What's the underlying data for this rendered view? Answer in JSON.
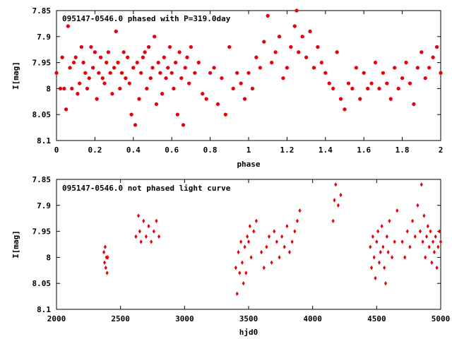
{
  "chart_data": [
    {
      "type": "scatter",
      "title": "095147-0546.0 phased with P=319.0day",
      "xlabel": "phase",
      "ylabel": "I[mag]",
      "xlim": [
        0,
        2
      ],
      "ylim": [
        8.1,
        7.85
      ],
      "xticks": [
        "0",
        "0.2",
        "0.4",
        "0.6",
        "0.8",
        "1",
        "1.2",
        "1.4",
        "1.6",
        "1.8",
        "2"
      ],
      "yticks": [
        "7.85",
        "7.9",
        "7.95",
        "8",
        "8.05",
        "8.1"
      ],
      "marker": "cross",
      "color": "#e8000a",
      "points": [
        [
          0.0,
          7.97
        ],
        [
          0.02,
          8.0
        ],
        [
          0.03,
          7.94
        ],
        [
          0.04,
          8.0
        ],
        [
          0.05,
          8.04
        ],
        [
          0.06,
          7.88
        ],
        [
          0.07,
          7.96
        ],
        [
          0.08,
          8.0
        ],
        [
          0.09,
          7.95
        ],
        [
          0.1,
          7.94
        ],
        [
          0.11,
          8.01
        ],
        [
          0.12,
          7.99
        ],
        [
          0.13,
          7.92
        ],
        [
          0.14,
          7.95
        ],
        [
          0.15,
          7.97
        ],
        [
          0.16,
          8.0
        ],
        [
          0.17,
          7.98
        ],
        [
          0.18,
          7.92
        ],
        [
          0.19,
          7.96
        ],
        [
          0.2,
          7.93
        ],
        [
          0.21,
          8.02
        ],
        [
          0.22,
          7.97
        ],
        [
          0.23,
          7.94
        ],
        [
          0.24,
          7.98
        ],
        [
          0.25,
          7.99
        ],
        [
          0.26,
          7.95
        ],
        [
          0.27,
          7.93
        ],
        [
          0.28,
          7.97
        ],
        [
          0.29,
          8.01
        ],
        [
          0.3,
          7.96
        ],
        [
          0.31,
          7.89
        ],
        [
          0.32,
          7.95
        ],
        [
          0.33,
          8.0
        ],
        [
          0.34,
          7.97
        ],
        [
          0.35,
          7.93
        ],
        [
          0.36,
          7.98
        ],
        [
          0.37,
          7.94
        ],
        [
          0.38,
          7.99
        ],
        [
          0.39,
          8.05
        ],
        [
          0.4,
          7.96
        ],
        [
          0.41,
          8.07
        ],
        [
          0.42,
          7.95
        ],
        [
          0.43,
          8.02
        ],
        [
          0.44,
          7.97
        ],
        [
          0.45,
          7.94
        ],
        [
          0.46,
          7.93
        ],
        [
          0.47,
          8.0
        ],
        [
          0.48,
          7.92
        ],
        [
          0.49,
          7.98
        ],
        [
          0.5,
          7.96
        ],
        [
          0.51,
          7.9
        ],
        [
          0.52,
          8.03
        ],
        [
          0.53,
          7.95
        ],
        [
          0.54,
          7.97
        ],
        [
          0.55,
          8.01
        ],
        [
          0.56,
          7.94
        ],
        [
          0.57,
          7.98
        ],
        [
          0.58,
          7.96
        ],
        [
          0.59,
          7.92
        ],
        [
          0.6,
          7.97
        ],
        [
          0.61,
          8.0
        ],
        [
          0.62,
          7.95
        ],
        [
          0.63,
          8.05
        ],
        [
          0.64,
          7.93
        ],
        [
          0.65,
          7.98
        ],
        [
          0.66,
          8.07
        ],
        [
          0.67,
          7.96
        ],
        [
          0.68,
          7.94
        ],
        [
          0.69,
          7.99
        ],
        [
          0.7,
          7.92
        ],
        [
          0.72,
          7.97
        ],
        [
          0.74,
          7.95
        ],
        [
          0.76,
          8.01
        ],
        [
          0.78,
          8.02
        ],
        [
          0.8,
          7.97
        ],
        [
          0.82,
          7.96
        ],
        [
          0.84,
          8.03
        ],
        [
          0.86,
          7.98
        ],
        [
          0.88,
          8.05
        ],
        [
          0.9,
          7.92
        ],
        [
          0.92,
          8.0
        ],
        [
          0.94,
          7.97
        ],
        [
          0.96,
          7.99
        ],
        [
          0.98,
          8.02
        ],
        [
          1.0,
          7.97
        ],
        [
          1.02,
          8.0
        ],
        [
          1.04,
          7.94
        ],
        [
          1.06,
          7.96
        ],
        [
          1.08,
          7.91
        ],
        [
          1.1,
          7.86
        ],
        [
          1.12,
          7.95
        ],
        [
          1.14,
          7.93
        ],
        [
          1.16,
          7.9
        ],
        [
          1.18,
          7.98
        ],
        [
          1.2,
          7.96
        ],
        [
          1.22,
          7.92
        ],
        [
          1.24,
          7.88
        ],
        [
          1.25,
          7.85
        ],
        [
          1.26,
          7.93
        ],
        [
          1.28,
          7.9
        ],
        [
          1.3,
          7.94
        ],
        [
          1.32,
          7.89
        ],
        [
          1.34,
          7.96
        ],
        [
          1.36,
          7.92
        ],
        [
          1.38,
          7.95
        ],
        [
          1.4,
          7.97
        ],
        [
          1.42,
          7.99
        ],
        [
          1.44,
          8.0
        ],
        [
          1.46,
          7.93
        ],
        [
          1.48,
          8.02
        ],
        [
          1.5,
          8.04
        ],
        [
          1.52,
          7.99
        ],
        [
          1.54,
          8.0
        ],
        [
          1.56,
          7.96
        ],
        [
          1.58,
          8.02
        ],
        [
          1.6,
          7.97
        ],
        [
          1.62,
          8.0
        ],
        [
          1.64,
          7.99
        ],
        [
          1.66,
          7.95
        ],
        [
          1.68,
          8.0
        ],
        [
          1.7,
          7.97
        ],
        [
          1.72,
          7.99
        ],
        [
          1.74,
          8.02
        ],
        [
          1.76,
          7.96
        ],
        [
          1.78,
          8.0
        ],
        [
          1.8,
          7.98
        ],
        [
          1.82,
          7.95
        ],
        [
          1.84,
          7.99
        ],
        [
          1.86,
          8.03
        ],
        [
          1.88,
          7.96
        ],
        [
          1.9,
          7.93
        ],
        [
          1.92,
          7.98
        ],
        [
          1.94,
          7.96
        ],
        [
          1.96,
          7.94
        ],
        [
          1.98,
          7.92
        ],
        [
          2.0,
          7.97
        ]
      ]
    },
    {
      "type": "scatter",
      "title": "095147-0546.0 not phased light curve",
      "xlabel": "hjd0",
      "ylabel": "I[mag]",
      "xlim": [
        2000,
        5000
      ],
      "ylim": [
        8.1,
        7.85
      ],
      "xticks": [
        "2000",
        "2500",
        "3000",
        "3500",
        "4000",
        "4500",
        "5000"
      ],
      "yticks": [
        "7.85",
        "7.9",
        "7.95",
        "8",
        "8.05",
        "8.1"
      ],
      "marker": "diamond",
      "color": "#e8000a",
      "points": [
        [
          2370,
          7.99
        ],
        [
          2375,
          8.01
        ],
        [
          2380,
          7.98
        ],
        [
          2385,
          8.02
        ],
        [
          2390,
          8.0
        ],
        [
          2395,
          8.03
        ],
        [
          2400,
          8.0
        ],
        [
          2620,
          7.96
        ],
        [
          2640,
          7.92
        ],
        [
          2650,
          7.95
        ],
        [
          2660,
          7.97
        ],
        [
          2680,
          7.93
        ],
        [
          2700,
          7.96
        ],
        [
          2720,
          7.94
        ],
        [
          2740,
          7.97
        ],
        [
          2760,
          7.95
        ],
        [
          2780,
          7.93
        ],
        [
          2800,
          7.96
        ],
        [
          3400,
          8.02
        ],
        [
          3410,
          8.07
        ],
        [
          3420,
          7.99
        ],
        [
          3430,
          8.03
        ],
        [
          3440,
          7.97
        ],
        [
          3450,
          8.01
        ],
        [
          3460,
          8.05
        ],
        [
          3470,
          7.98
        ],
        [
          3480,
          8.03
        ],
        [
          3490,
          7.96
        ],
        [
          3500,
          7.97
        ],
        [
          3510,
          7.94
        ],
        [
          3520,
          8.0
        ],
        [
          3540,
          7.95
        ],
        [
          3560,
          7.93
        ],
        [
          3600,
          7.99
        ],
        [
          3620,
          8.02
        ],
        [
          3640,
          7.98
        ],
        [
          3660,
          7.96
        ],
        [
          3680,
          8.01
        ],
        [
          3700,
          7.95
        ],
        [
          3720,
          7.97
        ],
        [
          3740,
          8.0
        ],
        [
          3760,
          7.96
        ],
        [
          3780,
          7.98
        ],
        [
          3800,
          7.94
        ],
        [
          3820,
          7.99
        ],
        [
          3840,
          7.97
        ],
        [
          3860,
          7.95
        ],
        [
          3880,
          7.93
        ],
        [
          3900,
          7.91
        ],
        [
          4160,
          7.93
        ],
        [
          4170,
          7.89
        ],
        [
          4180,
          7.86
        ],
        [
          4200,
          7.9
        ],
        [
          4220,
          7.88
        ],
        [
          4450,
          7.98
        ],
        [
          4460,
          8.02
        ],
        [
          4470,
          7.96
        ],
        [
          4480,
          8.0
        ],
        [
          4490,
          8.04
        ],
        [
          4500,
          7.97
        ],
        [
          4510,
          7.95
        ],
        [
          4520,
          8.01
        ],
        [
          4530,
          7.99
        ],
        [
          4540,
          7.94
        ],
        [
          4550,
          7.98
        ],
        [
          4560,
          8.02
        ],
        [
          4570,
          8.05
        ],
        [
          4580,
          7.96
        ],
        [
          4590,
          7.99
        ],
        [
          4600,
          7.93
        ],
        [
          4620,
          8.0
        ],
        [
          4640,
          7.97
        ],
        [
          4660,
          7.91
        ],
        [
          4700,
          7.97
        ],
        [
          4720,
          8.0
        ],
        [
          4740,
          7.95
        ],
        [
          4760,
          7.98
        ],
        [
          4780,
          7.93
        ],
        [
          4800,
          7.96
        ],
        [
          4820,
          7.9
        ],
        [
          4840,
          7.95
        ],
        [
          4850,
          7.86
        ],
        [
          4860,
          7.97
        ],
        [
          4870,
          7.92
        ],
        [
          4880,
          8.0
        ],
        [
          4890,
          7.96
        ],
        [
          4900,
          7.94
        ],
        [
          4910,
          7.98
        ],
        [
          4920,
          7.95
        ],
        [
          4930,
          8.01
        ],
        [
          4940,
          7.97
        ],
        [
          4950,
          7.99
        ],
        [
          4960,
          7.96
        ],
        [
          4970,
          8.02
        ],
        [
          4980,
          7.98
        ],
        [
          4990,
          7.95
        ],
        [
          5000,
          7.97
        ]
      ]
    }
  ]
}
